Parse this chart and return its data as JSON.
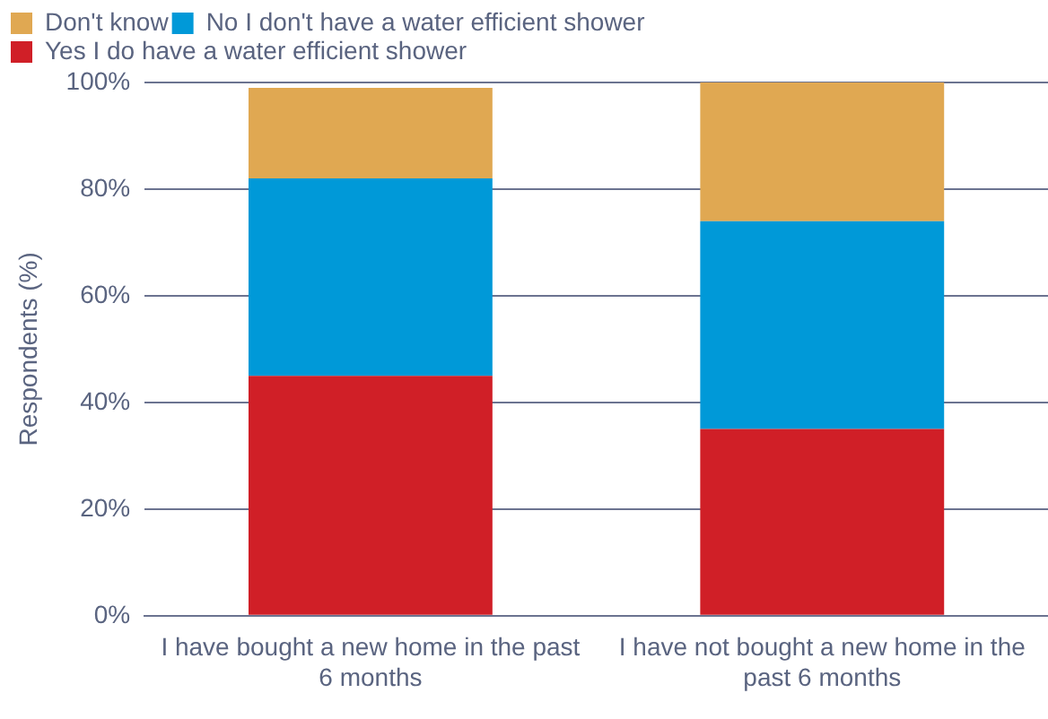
{
  "chart_data": {
    "type": "bar",
    "stacked": true,
    "ylabel": "Respondents (%)",
    "categories": [
      "I have bought a new home in the past 6 months",
      "I have not bought a new home in the past 6 months"
    ],
    "series": [
      {
        "name": "Yes I do have a water efficient shower",
        "color": "#d01f27",
        "values": [
          45,
          35
        ]
      },
      {
        "name": "No I don't have a water efficient shower",
        "color": "#0099d8",
        "values": [
          37,
          39
        ]
      },
      {
        "name": "Don't know",
        "color": "#e0a852",
        "values": [
          17,
          26
        ]
      }
    ],
    "ylim": [
      0,
      100
    ],
    "yticks": [
      {
        "value": 0,
        "label": "0%"
      },
      {
        "value": 20,
        "label": "20%"
      },
      {
        "value": 40,
        "label": "40%"
      },
      {
        "value": 60,
        "label": "60%"
      },
      {
        "value": 80,
        "label": "80%"
      },
      {
        "value": 100,
        "label": "100%"
      }
    ],
    "grid": "y",
    "legend": "top"
  }
}
